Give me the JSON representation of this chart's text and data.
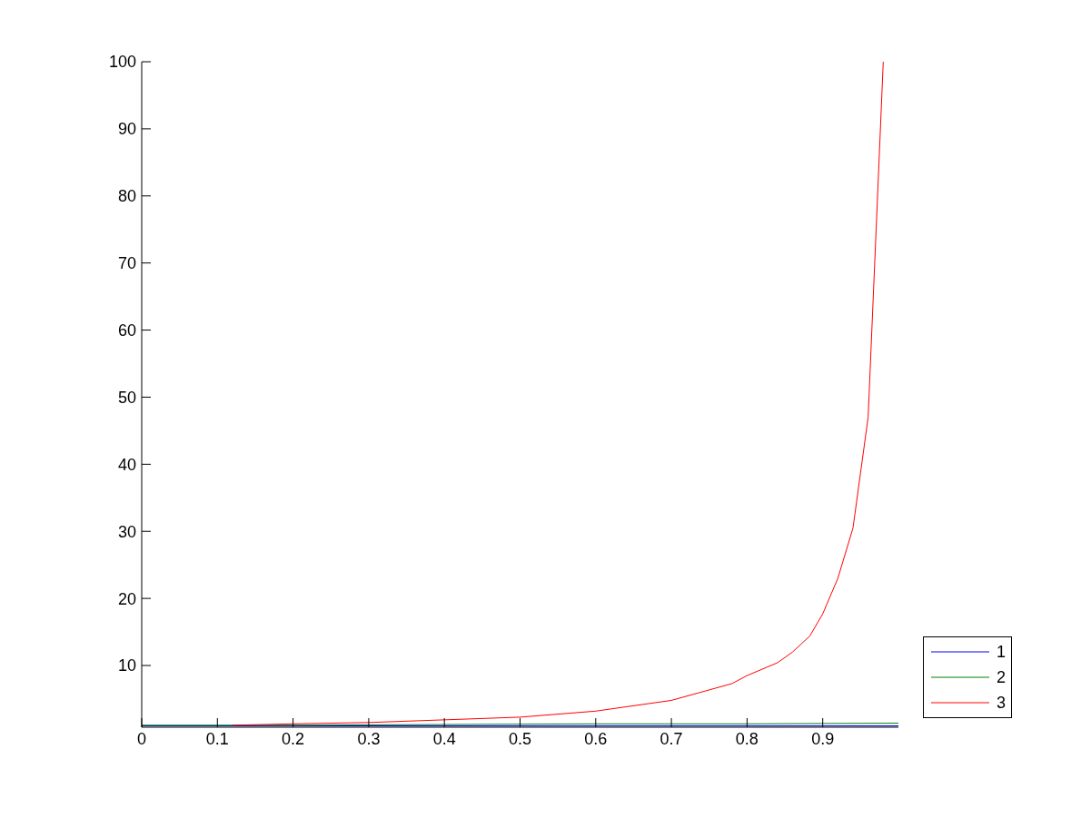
{
  "chart_data": {
    "type": "line",
    "xlim": [
      0,
      1
    ],
    "ylim": [
      0.8,
      100
    ],
    "xticks": [
      0,
      0.1,
      0.2,
      0.3,
      0.4,
      0.5,
      0.6,
      0.7,
      0.8,
      0.9
    ],
    "yticks": [
      10,
      20,
      30,
      40,
      50,
      60,
      70,
      80,
      90,
      100
    ],
    "grid": false,
    "legend": "bottom right",
    "marker": "none",
    "line_style": "solid",
    "series": [
      {
        "name": "1",
        "color": "#0000ff",
        "x": [
          0,
          1
        ],
        "values": [
          1,
          1
        ]
      },
      {
        "name": "2",
        "color": "#008000",
        "x": [
          0,
          0.2,
          0.4,
          0.6,
          0.8,
          1
        ],
        "values": [
          1.1,
          1.1,
          1.2,
          1.3,
          1.3,
          1.4
        ]
      },
      {
        "name": "3",
        "color": "#ff0000",
        "x": [
          0.12,
          0.2,
          0.3,
          0.4,
          0.5,
          0.6,
          0.7,
          0.78,
          0.8,
          0.84,
          0.86,
          0.883,
          0.9,
          0.92,
          0.94,
          0.96,
          0.98
        ],
        "values": [
          1.1,
          1.3,
          1.5,
          1.9,
          2.3,
          3.2,
          4.8,
          7.3,
          8.5,
          10.4,
          12,
          14.4,
          17.7,
          23,
          30.5,
          47,
          100
        ]
      }
    ]
  }
}
